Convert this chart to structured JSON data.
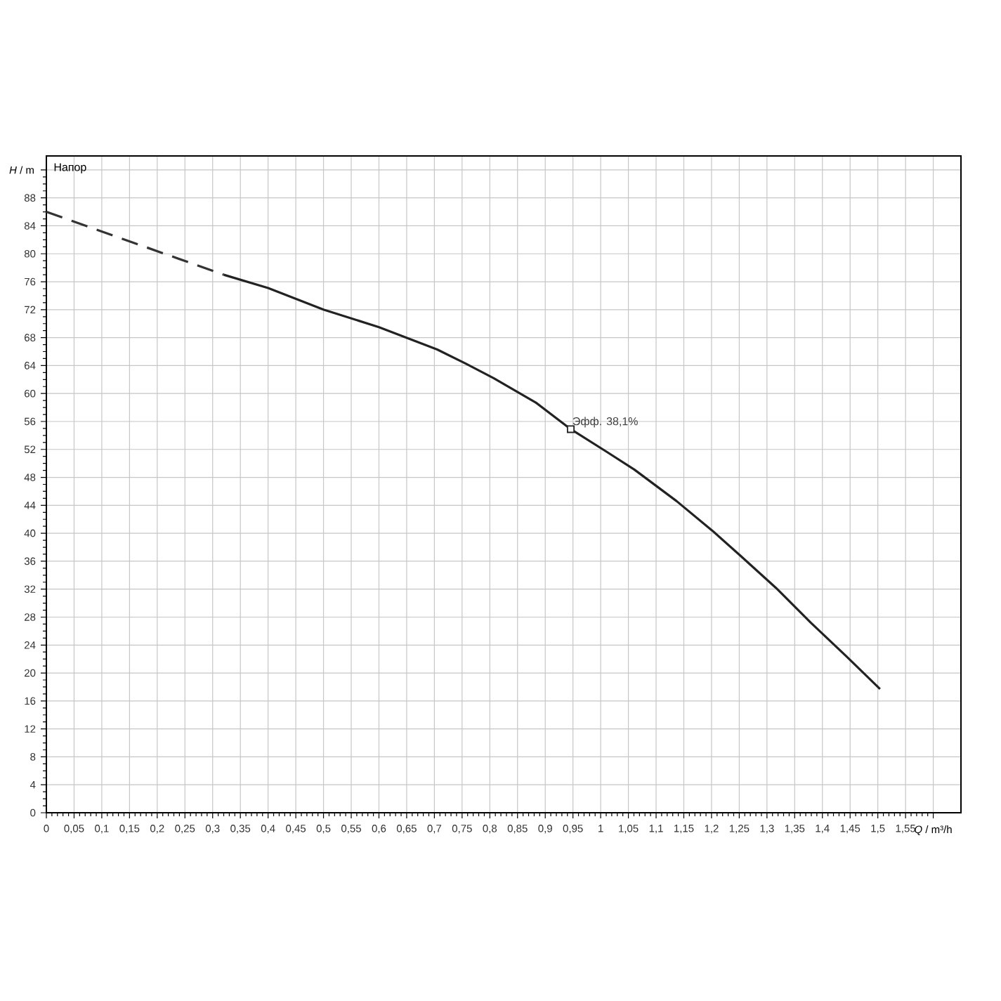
{
  "chart_data": {
    "type": "line",
    "xlabel": "*Q* / m³/h",
    "ylabel": "*H* / m",
    "annotations": [
      "Напор",
      {
        "text": "Эфф.  38,1%",
        "x": 0.946,
        "y": 54.9
      }
    ],
    "series": [
      {
        "color": "#333333",
        "line_style": "dashed",
        "marker": "none",
        "x": [
          0,
          0.32
        ],
        "values": [
          86,
          77.0
        ]
      },
      {
        "color": "#222222",
        "line_style": "solid",
        "marker": "none",
        "x": [
          0.32,
          0.4,
          0.5,
          0.6,
          0.705,
          0.756,
          0.807,
          0.883,
          0.946,
          1.01,
          1.061,
          1.137,
          1.201,
          1.252,
          1.316,
          1.379,
          1.443,
          1.504
        ],
        "values": [
          77.0,
          75.1,
          72.0,
          69.5,
          66.3,
          64.3,
          62.2,
          58.7,
          54.9,
          51.7,
          49.1,
          44.6,
          40.4,
          36.8,
          32.2,
          27.2,
          22.4,
          17.7
        ]
      },
      {
        "type": "scatter",
        "color": "#222222",
        "marker": "square",
        "x": [
          0.946
        ],
        "values": [
          54.9
        ]
      }
    ],
    "xlim": [
      0,
      1.65
    ],
    "ylim": [
      0,
      94
    ],
    "xticks": [
      0,
      {
        "value": 0.05,
        "label": "0,05"
      },
      {
        "value": 0.1,
        "label": "0,1"
      },
      {
        "value": 0.15,
        "label": "0,15"
      },
      {
        "value": 0.2,
        "label": "0,2"
      },
      {
        "value": 0.25,
        "label": "0,25"
      },
      {
        "value": 0.3,
        "label": "0,3"
      },
      {
        "value": 0.35,
        "label": "0,35"
      },
      {
        "value": 0.4,
        "label": "0,4"
      },
      {
        "value": 0.45,
        "label": "0,45"
      },
      {
        "value": 0.5,
        "label": "0,5"
      },
      {
        "value": 0.55,
        "label": "0,55"
      },
      {
        "value": 0.6,
        "label": "0,6"
      },
      {
        "value": 0.65,
        "label": "0,65"
      },
      {
        "value": 0.7,
        "label": "0,7"
      },
      {
        "value": 0.75,
        "label": "0,75"
      },
      {
        "value": 0.8,
        "label": "0,8"
      },
      {
        "value": 0.85,
        "label": "0,85"
      },
      {
        "value": 0.9,
        "label": "0,9"
      },
      {
        "value": 0.95,
        "label": "0,95"
      },
      1,
      {
        "value": 1.05,
        "label": "1,05"
      },
      {
        "value": 1.1,
        "label": "1,1"
      },
      {
        "value": 1.15,
        "label": "1,15"
      },
      {
        "value": 1.2,
        "label": "1,2"
      },
      {
        "value": 1.25,
        "label": "1,25"
      },
      {
        "value": 1.3,
        "label": "1,3"
      },
      {
        "value": 1.35,
        "label": "1,35"
      },
      {
        "value": 1.4,
        "label": "1,4"
      },
      {
        "value": 1.45,
        "label": "1,45"
      },
      {
        "value": 1.5,
        "label": "1,5"
      },
      {
        "value": 1.55,
        "label": "1,55"
      },
      {
        "value": 1.6,
        "label": null
      }
    ],
    "yticks": [
      0,
      4,
      8,
      12,
      16,
      20,
      24,
      28,
      32,
      36,
      40,
      44,
      48,
      52,
      56,
      60,
      64,
      68,
      72,
      76,
      80,
      84,
      88,
      {
        "value": 92,
        "label": null
      }
    ],
    "grid": true
  }
}
